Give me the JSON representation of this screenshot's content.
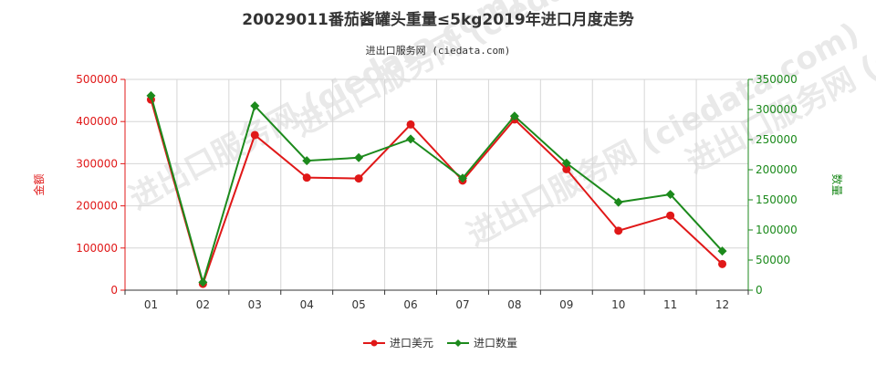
{
  "chart_data": {
    "type": "line",
    "title": "20029011番茄酱罐头重量≤5kg2019年进口月度走势",
    "subtitle": "进出口服务网 (ciedata.com)",
    "watermark": "进出口服务网 (ciedata.com)",
    "categories": [
      "01",
      "02",
      "03",
      "04",
      "05",
      "06",
      "07",
      "08",
      "09",
      "10",
      "11",
      "12"
    ],
    "y_left": {
      "label": "金额",
      "ylim": [
        0,
        500000
      ],
      "ticks": [
        "0",
        "100000",
        "200000",
        "300000",
        "400000",
        "500000"
      ],
      "color": "#e01818"
    },
    "y_right": {
      "label": "数量",
      "ylim": [
        0,
        350000
      ],
      "ticks": [
        "0",
        "50000",
        "100000",
        "150000",
        "200000",
        "250000",
        "300000",
        "350000"
      ],
      "color": "#1c8a1c"
    },
    "series": [
      {
        "name": "进口美元",
        "axis": "left",
        "color": "#e01818",
        "marker": "circle",
        "values": [
          452000,
          15000,
          368000,
          267000,
          265000,
          393000,
          260000,
          405000,
          287000,
          141000,
          177000,
          62000
        ]
      },
      {
        "name": "进口数量",
        "axis": "right",
        "color": "#1c8a1c",
        "marker": "diamond",
        "values": [
          323000,
          13000,
          306000,
          215000,
          220000,
          251000,
          186000,
          289000,
          211000,
          146000,
          159000,
          65000
        ]
      }
    ],
    "grid": true,
    "legend_position": "bottom-center"
  }
}
